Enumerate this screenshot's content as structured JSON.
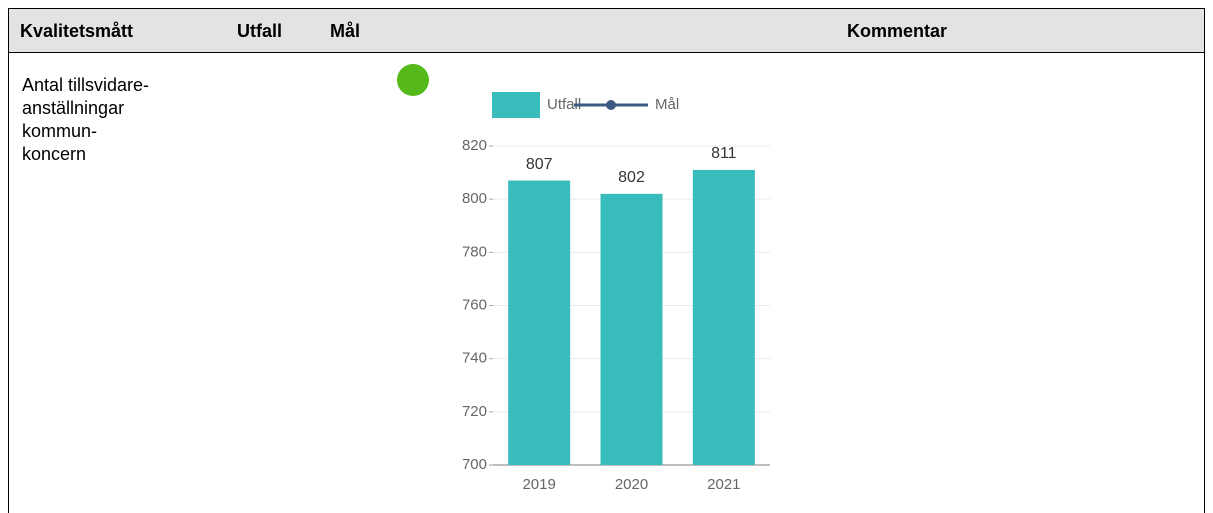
{
  "table": {
    "headers": [
      "Kvalitetsmått",
      "Utfall",
      "Mål",
      "Kommentar"
    ],
    "rows": [
      [
        [
          "Antal tillsvidare-",
          "anställningar",
          "kommun-",
          "koncern"
        ]
      ]
    ]
  },
  "chart_data": {
    "type": "bar",
    "categories": [
      "2019",
      "2020",
      "2021"
    ],
    "series": [
      {
        "name": "Utfall",
        "color": "#38bcbc",
        "values": [
          807,
          802,
          811
        ]
      },
      {
        "name": "Mål",
        "color": "#3d5a80",
        "type": "line",
        "values": [
          null,
          null,
          null
        ]
      }
    ],
    "ylim": [
      700,
      820
    ],
    "yticks": [
      700,
      720,
      740,
      760,
      780,
      800,
      820
    ],
    "grid": true,
    "legend": "top"
  }
}
